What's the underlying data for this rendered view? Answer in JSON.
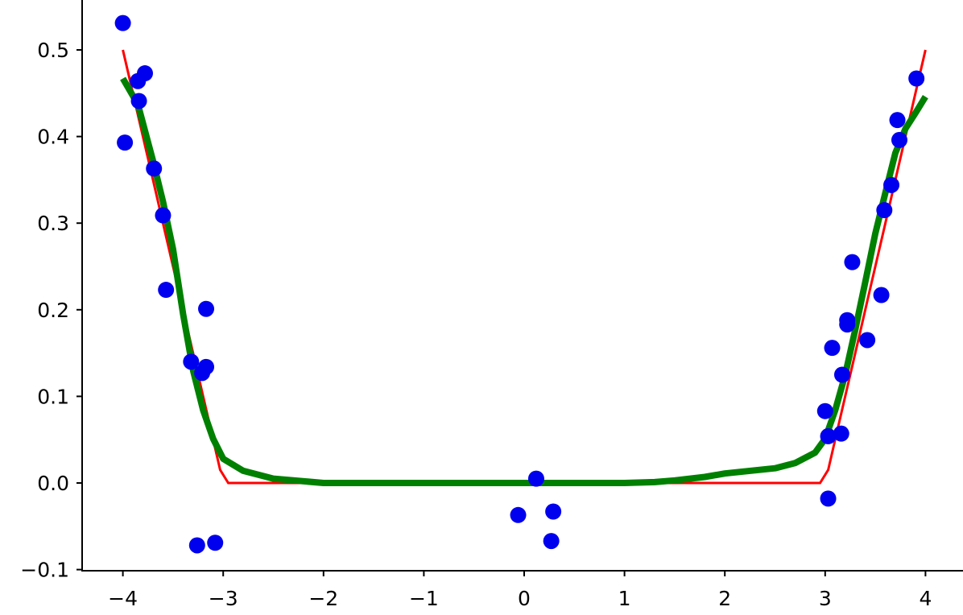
{
  "chart_data": {
    "type": "scatter",
    "title": "",
    "xlabel": "",
    "ylabel": "",
    "xlim": [
      -4.2,
      4.2
    ],
    "ylim": [
      -0.1,
      0.56
    ],
    "grid": false,
    "x_ticks": [
      -4,
      -3,
      -2,
      -1,
      0,
      1,
      2,
      3,
      4
    ],
    "x_tick_labels": [
      "−4",
      "−3",
      "−2",
      "−1",
      "0",
      "1",
      "2",
      "3",
      "4"
    ],
    "y_ticks": [
      -0.1,
      0.0,
      0.1,
      0.2,
      0.3,
      0.4,
      0.5
    ],
    "y_tick_labels": [
      "−0.1",
      "0.0",
      "0.1",
      "0.2",
      "0.3",
      "0.4",
      "0.5"
    ],
    "colors": {
      "points": "#0000ee",
      "true_line": "#ff0000",
      "fit_line": "#008000"
    },
    "scatter_points": {
      "x": [
        -4.0,
        -3.98,
        -3.85,
        -3.78,
        -3.84,
        -3.69,
        -3.6,
        -3.57,
        -3.17,
        -3.32,
        -3.21,
        -3.17,
        -3.26,
        -3.08,
        -0.06,
        0.12,
        0.29,
        0.27,
        3.03,
        3.03,
        3.0,
        3.16,
        3.07,
        3.17,
        3.22,
        3.22,
        3.27,
        3.42,
        3.56,
        3.59,
        3.66,
        3.72,
        3.74,
        3.91
      ],
      "y": [
        0.531,
        0.393,
        0.464,
        0.473,
        0.441,
        0.363,
        0.309,
        0.223,
        0.201,
        0.14,
        0.127,
        0.134,
        -0.072,
        -0.069,
        -0.037,
        0.005,
        -0.033,
        -0.067,
        -0.018,
        0.054,
        0.083,
        0.057,
        0.156,
        0.125,
        0.188,
        0.183,
        0.255,
        0.165,
        0.217,
        0.315,
        0.344,
        0.419,
        0.396,
        0.467
      ]
    },
    "red_line": {
      "function": "0.5*max(0,|x|-3)",
      "x_range": [
        -4,
        4
      ]
    },
    "green_curve": {
      "x": [
        -4.0,
        -3.85,
        -3.7,
        -3.6,
        -3.5,
        -3.4,
        -3.3,
        -3.2,
        -3.1,
        -3.0,
        -2.8,
        -2.5,
        -2.0,
        -1.0,
        0.0,
        1.0,
        1.3,
        1.5,
        1.8,
        2.0,
        2.5,
        2.7,
        2.9,
        3.0,
        3.1,
        3.2,
        3.3,
        3.4,
        3.5,
        3.6,
        3.7,
        3.8,
        3.9,
        4.0
      ],
      "y": [
        0.467,
        0.437,
        0.372,
        0.325,
        0.27,
        0.195,
        0.13,
        0.084,
        0.051,
        0.028,
        0.014,
        0.005,
        0.0,
        0.0,
        0.0,
        0.0,
        0.001,
        0.003,
        0.007,
        0.011,
        0.017,
        0.023,
        0.035,
        0.051,
        0.084,
        0.125,
        0.177,
        0.232,
        0.288,
        0.335,
        0.381,
        0.409,
        0.427,
        0.446
      ]
    }
  }
}
